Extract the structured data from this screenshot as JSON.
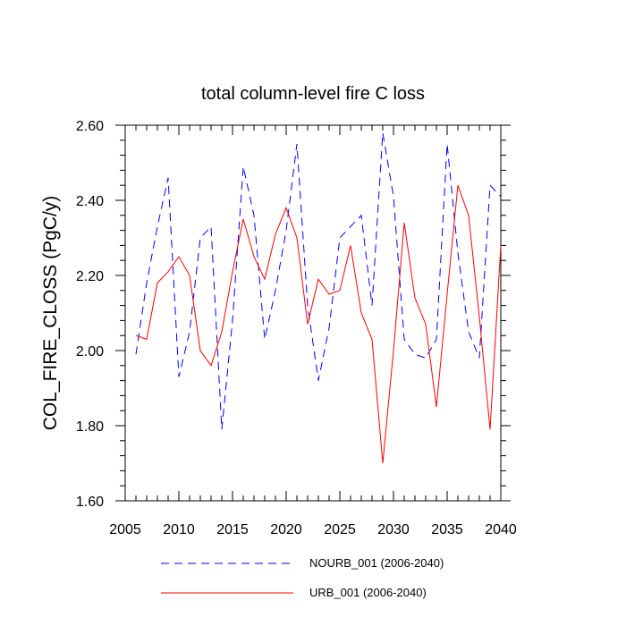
{
  "chart_data": {
    "type": "line",
    "title": "total column-level fire C loss",
    "xlabel": "",
    "ylabel": "COL_FIRE_CLOSS  (PgC/y)",
    "xlim": [
      2005,
      2040
    ],
    "ylim": [
      1.6,
      2.6
    ],
    "xticks": [
      "2005",
      "2010",
      "2015",
      "2020",
      "2025",
      "2030",
      "2035",
      "2040"
    ],
    "yticks": [
      "1.60",
      "1.80",
      "2.00",
      "2.20",
      "2.40",
      "2.60"
    ],
    "x": [
      2006,
      2007,
      2008,
      2009,
      2010,
      2011,
      2012,
      2013,
      2014,
      2015,
      2016,
      2017,
      2018,
      2019,
      2020,
      2021,
      2022,
      2023,
      2024,
      2025,
      2026,
      2027,
      2028,
      2029,
      2030,
      2031,
      2032,
      2033,
      2034,
      2035,
      2036,
      2037,
      2038,
      2039,
      2040
    ],
    "series": [
      {
        "name": "NOURB_001 (2006-2040)",
        "color": "#0000ff",
        "dash": "dashed",
        "values": [
          1.99,
          2.18,
          2.33,
          2.46,
          1.93,
          2.05,
          2.3,
          2.33,
          1.79,
          2.08,
          2.49,
          2.36,
          2.03,
          2.16,
          2.32,
          2.55,
          2.12,
          1.92,
          2.06,
          2.3,
          2.33,
          2.36,
          2.12,
          2.58,
          2.41,
          2.03,
          1.99,
          1.98,
          2.03,
          2.55,
          2.26,
          2.05,
          1.98,
          2.44,
          2.41
        ]
      },
      {
        "name": "URB_001 (2006-2040)",
        "color": "#ff0000",
        "dash": "solid",
        "values": [
          2.04,
          2.03,
          2.18,
          2.21,
          2.25,
          2.2,
          2.0,
          1.96,
          2.05,
          2.21,
          2.35,
          2.25,
          2.19,
          2.31,
          2.38,
          2.3,
          2.07,
          2.19,
          2.15,
          2.16,
          2.28,
          2.1,
          2.03,
          1.7,
          2.0,
          2.34,
          2.14,
          2.07,
          1.85,
          2.15,
          2.44,
          2.36,
          2.09,
          1.79,
          2.28
        ]
      }
    ],
    "legend_position": "bottom"
  }
}
